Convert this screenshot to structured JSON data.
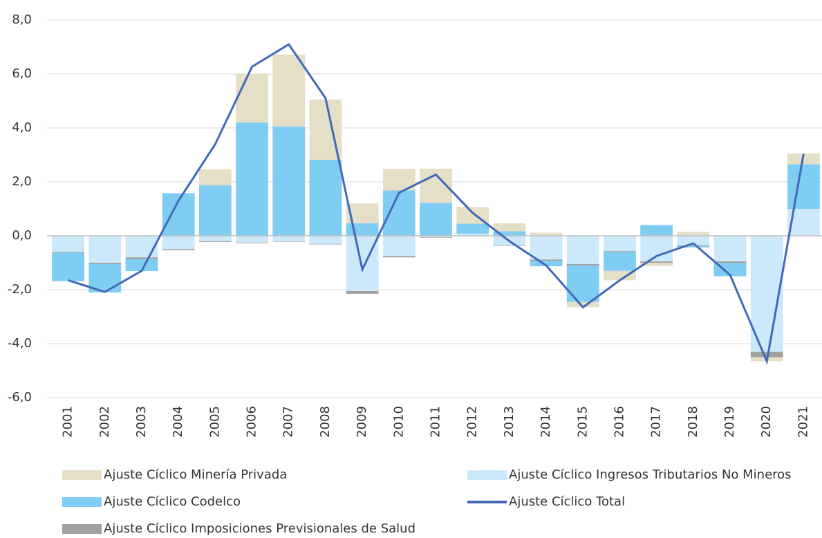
{
  "chart_data": {
    "type": "bar",
    "categories": [
      "2001",
      "2002",
      "2003",
      "2004",
      "2005",
      "2006",
      "2007",
      "2008",
      "2009",
      "2010",
      "2011",
      "2012",
      "2013",
      "2014",
      "2015",
      "2016",
      "2017",
      "2018",
      "2019",
      "2020",
      "2021"
    ],
    "series": [
      {
        "name": "Ajuste Cíclico Ingresos Tributarios No Mineros",
        "color": "#cce8fb",
        "values": [
          -0.6,
          -1.0,
          -0.8,
          -0.5,
          -0.2,
          -0.25,
          -0.2,
          -0.3,
          -2.05,
          -0.75,
          -0.05,
          0.08,
          -0.35,
          -0.88,
          -1.05,
          -0.57,
          -0.95,
          -0.35,
          -0.95,
          -4.3,
          1.0
        ]
      },
      {
        "name": "Ajuste Cíclico Imposiciones Previsionales de Salud",
        "color": "#a0a0a0",
        "values": [
          -0.03,
          -0.05,
          -0.06,
          -0.04,
          -0.03,
          -0.02,
          -0.02,
          -0.02,
          -0.1,
          -0.05,
          -0.02,
          0,
          -0.02,
          -0.05,
          -0.05,
          -0.03,
          -0.05,
          -0.03,
          -0.05,
          -0.2,
          0
        ]
      },
      {
        "name": "Ajuste Cíclico Codelco",
        "color": "#7fcdf3",
        "values": [
          -1.05,
          -1.05,
          -0.45,
          1.58,
          1.87,
          4.2,
          4.05,
          2.82,
          0.47,
          1.68,
          1.22,
          0.37,
          0.17,
          -0.2,
          -1.35,
          -0.7,
          0.4,
          -0.05,
          -0.5,
          0,
          1.65
        ]
      },
      {
        "name": "Ajuste Cíclico Minería Privada",
        "color": "#e6dfc8",
        "values": [
          0,
          0,
          0,
          0,
          0.6,
          1.8,
          2.67,
          2.23,
          0.73,
          0.8,
          1.27,
          0.62,
          0.3,
          0.12,
          -0.2,
          -0.35,
          -0.12,
          0.15,
          0,
          -0.15,
          0.4
        ]
      },
      {
        "name": "Ajuste Cíclico Total",
        "color": "#4169b8",
        "type": "line",
        "values": [
          -1.65,
          -2.08,
          -1.3,
          1.3,
          3.4,
          6.27,
          7.1,
          5.1,
          -1.25,
          1.6,
          2.27,
          0.85,
          -0.2,
          -1.1,
          -2.65,
          -1.65,
          -0.75,
          -0.28,
          -1.45,
          -4.65,
          3.05
        ]
      }
    ],
    "ylim": [
      -6,
      8
    ],
    "yticks": [
      {
        "value": -6,
        "label": "-6,0"
      },
      {
        "value": -4,
        "label": "-4,0"
      },
      {
        "value": -2,
        "label": "-2,0"
      },
      {
        "value": 0,
        "label": "0,0"
      },
      {
        "value": 2,
        "label": "2,0"
      },
      {
        "value": 4,
        "label": "4,0"
      },
      {
        "value": 6,
        "label": "6,0"
      },
      {
        "value": 8,
        "label": "8,0"
      }
    ],
    "grid": true
  }
}
